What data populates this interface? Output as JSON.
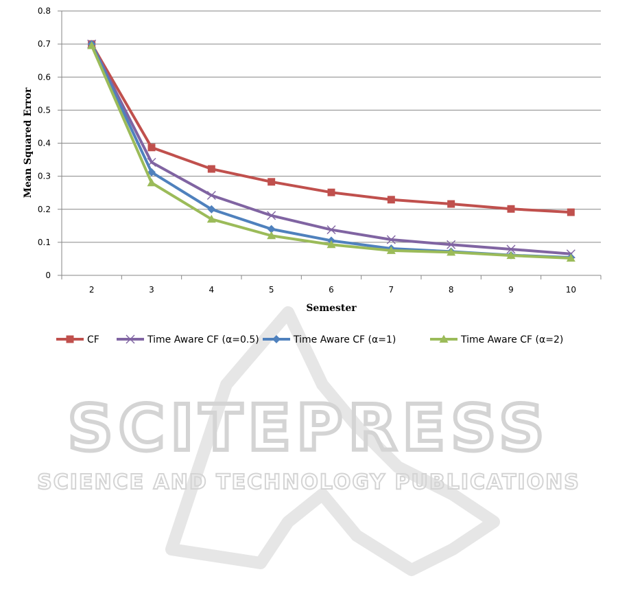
{
  "chart_data": {
    "type": "line",
    "title": "",
    "xlabel": "Semester",
    "ylabel": "Mean Squared Error",
    "categories": [
      "2",
      "3",
      "4",
      "5",
      "6",
      "7",
      "8",
      "9",
      "10"
    ],
    "ylim": [
      0,
      0.8
    ],
    "yticks": [
      "0",
      "0.1",
      "0.2",
      "0.3",
      "0.4",
      "0.5",
      "0.6",
      "0.7",
      "0.8"
    ],
    "grid": "horizontal",
    "legend": "bottom",
    "series": [
      {
        "name": "CF",
        "color": "#c0504d",
        "marker": "square",
        "values": [
          0.7,
          0.387,
          0.322,
          0.283,
          0.251,
          0.229,
          0.216,
          0.201,
          0.191
        ]
      },
      {
        "name": "Time Aware CF (α=0.5)",
        "color": "#8064a2",
        "marker": "x",
        "values": [
          0.7,
          0.342,
          0.242,
          0.181,
          0.138,
          0.108,
          0.093,
          0.079,
          0.065
        ]
      },
      {
        "name": "Time Aware CF (α=1)",
        "color": "#4f81bd",
        "marker": "diamond",
        "values": [
          0.7,
          0.312,
          0.2,
          0.14,
          0.105,
          0.081,
          0.072,
          0.061,
          0.054
        ]
      },
      {
        "name": "Time Aware CF (α=2)",
        "color": "#9bbb59",
        "marker": "triangle",
        "values": [
          0.695,
          0.28,
          0.17,
          0.12,
          0.093,
          0.075,
          0.07,
          0.06,
          0.052
        ]
      }
    ]
  },
  "watermark": {
    "title": "SCITEPRESS",
    "subtitle": "SCIENCE AND TECHNOLOGY PUBLICATIONS",
    "color": "#d2d2d2"
  }
}
